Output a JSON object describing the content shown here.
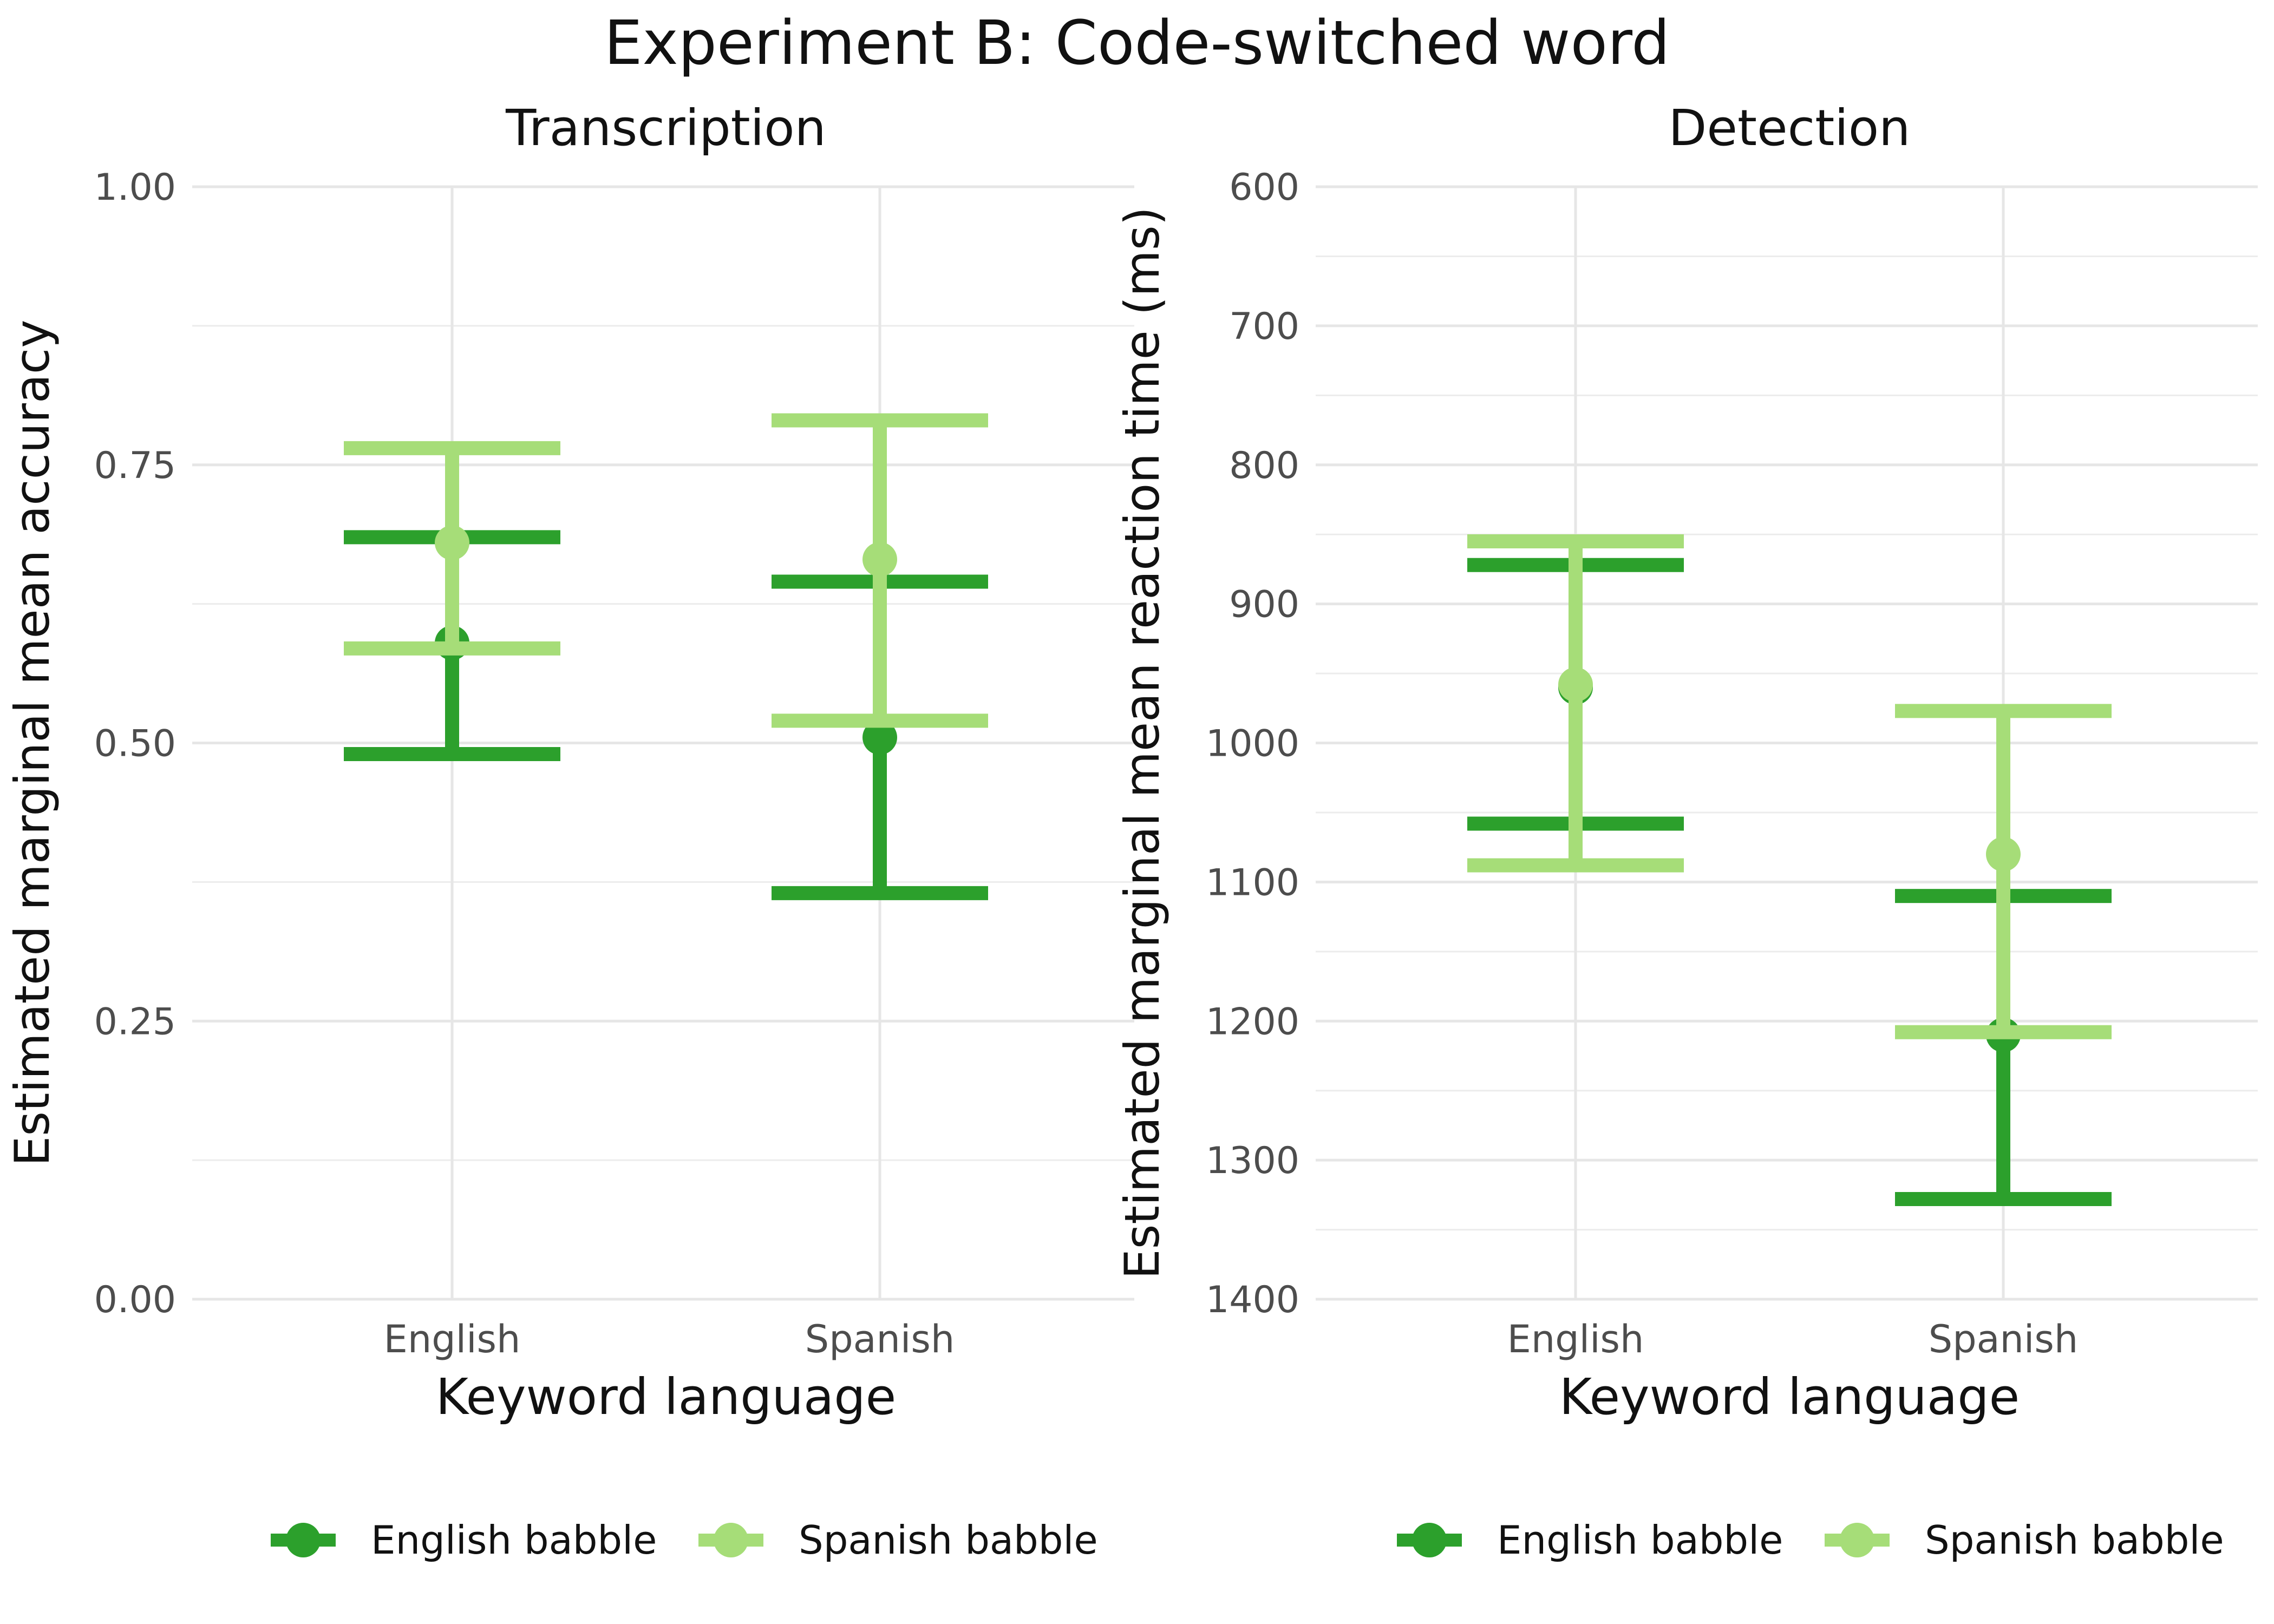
{
  "title": "Experiment B: Code-switched word",
  "colors": {
    "english_babble": "#2ca02c",
    "spanish_babble": "#a6dd78",
    "grid": "#e6e6e6",
    "text": "#111111",
    "tick": "#4d4d4d"
  },
  "legend": {
    "placement": "bottom",
    "entries": [
      "English babble",
      "Spanish babble"
    ]
  },
  "chart_data": [
    {
      "type": "errorbar",
      "title": "Transcription",
      "xlabel": "Keyword language",
      "ylabel": "Estimated marginal mean accuracy",
      "categories": [
        "English",
        "Spanish"
      ],
      "ylim": [
        0,
        1
      ],
      "y_reversed": false,
      "yticks": [
        0,
        0.25,
        0.5,
        0.75,
        1
      ],
      "ytick_labels": [
        "0.00",
        "0.25",
        "0.50",
        "0.75",
        "1.00"
      ],
      "grid": true,
      "series": [
        {
          "name": "English babble",
          "color": "#2ca02c",
          "points": [
            {
              "x": "English",
              "y": 0.59,
              "lo": 0.49,
              "hi": 0.685
            },
            {
              "x": "Spanish",
              "y": 0.505,
              "lo": 0.365,
              "hi": 0.645
            }
          ]
        },
        {
          "name": "Spanish babble",
          "color": "#a6dd78",
          "points": [
            {
              "x": "English",
              "y": 0.68,
              "lo": 0.585,
              "hi": 0.765
            },
            {
              "x": "Spanish",
              "y": 0.665,
              "lo": 0.52,
              "hi": 0.79
            }
          ]
        }
      ]
    },
    {
      "type": "errorbar",
      "title": "Detection",
      "xlabel": "Keyword language",
      "ylabel": "Estimated marginal mean reaction time (ms)",
      "categories": [
        "English",
        "Spanish"
      ],
      "ylim": [
        600,
        1400
      ],
      "y_reversed": true,
      "yticks": [
        600,
        700,
        800,
        900,
        1000,
        1100,
        1200,
        1300,
        1400
      ],
      "ytick_labels": [
        "600",
        "700",
        "800",
        "900",
        "1000",
        "1100",
        "1200",
        "1300",
        "1400"
      ],
      "grid": true,
      "series": [
        {
          "name": "English babble",
          "color": "#2ca02c",
          "points": [
            {
              "x": "English",
              "y": 960,
              "lo": 872,
              "hi": 1058
            },
            {
              "x": "Spanish",
              "y": 1210,
              "lo": 1110,
              "hi": 1328
            }
          ]
        },
        {
          "name": "Spanish babble",
          "color": "#a6dd78",
          "points": [
            {
              "x": "English",
              "y": 958,
              "lo": 855,
              "hi": 1088
            },
            {
              "x": "Spanish",
              "y": 1080,
              "lo": 977,
              "hi": 1208
            }
          ]
        }
      ]
    }
  ]
}
